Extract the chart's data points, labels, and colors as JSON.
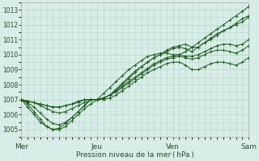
{
  "xlabel": "Pression niveau de la mer ( hPa )",
  "ylim": [
    1004.5,
    1013.5
  ],
  "yticks": [
    1005,
    1006,
    1007,
    1008,
    1009,
    1010,
    1011,
    1012,
    1013
  ],
  "xtick_labels": [
    "Mer",
    "Jeu",
    "Ven",
    "Sam"
  ],
  "bg_color": "#d8ede8",
  "grid_color": "#b8d4cc",
  "line_color": "#1a5c1a",
  "series": [
    [
      1007.0,
      1006.7,
      1006.2,
      1005.7,
      1005.2,
      1005.0,
      1005.0,
      1005.2,
      1005.6,
      1006.0,
      1006.4,
      1006.7,
      1007.0,
      1007.4,
      1007.8,
      1008.2,
      1008.6,
      1009.0,
      1009.3,
      1009.6,
      1009.9,
      1010.0,
      1010.1,
      1010.1,
      1010.0,
      1010.0,
      1010.2,
      1010.5,
      1010.8,
      1011.1,
      1011.4,
      1011.7,
      1012.0,
      1012.3,
      1012.6,
      1012.9,
      1013.2
    ],
    [
      1007.0,
      1006.5,
      1006.0,
      1005.5,
      1005.2,
      1005.0,
      1005.1,
      1005.4,
      1005.8,
      1006.2,
      1006.6,
      1007.0,
      1007.0,
      1007.1,
      1007.3,
      1007.6,
      1008.0,
      1008.4,
      1008.8,
      1009.2,
      1009.5,
      1009.8,
      1010.0,
      1010.2,
      1010.4,
      1010.5,
      1010.4,
      1010.2,
      1010.5,
      1010.8,
      1011.1,
      1011.4,
      1011.6,
      1011.8,
      1012.0,
      1012.2,
      1012.5
    ],
    [
      1007.0,
      1006.8,
      1006.5,
      1006.1,
      1005.7,
      1005.4,
      1005.3,
      1005.5,
      1005.8,
      1006.2,
      1006.6,
      1007.0,
      1007.0,
      1007.1,
      1007.3,
      1007.7,
      1008.1,
      1008.5,
      1008.9,
      1009.2,
      1009.5,
      1009.8,
      1010.0,
      1010.3,
      1010.5,
      1010.6,
      1010.7,
      1010.5,
      1010.5,
      1010.8,
      1011.0,
      1011.3,
      1011.6,
      1011.8,
      1012.1,
      1012.4,
      1012.6
    ],
    [
      1007.0,
      1006.9,
      1006.8,
      1006.7,
      1006.6,
      1006.5,
      1006.5,
      1006.6,
      1006.7,
      1006.9,
      1007.0,
      1007.0,
      1007.0,
      1007.1,
      1007.3,
      1007.6,
      1007.9,
      1008.2,
      1008.5,
      1008.8,
      1009.1,
      1009.4,
      1009.6,
      1009.8,
      1009.9,
      1010.0,
      1009.9,
      1009.9,
      1010.0,
      1010.2,
      1010.4,
      1010.6,
      1010.7,
      1010.7,
      1010.6,
      1010.7,
      1011.0
    ],
    [
      1007.0,
      1006.9,
      1006.8,
      1006.7,
      1006.6,
      1006.5,
      1006.5,
      1006.6,
      1006.7,
      1006.8,
      1007.0,
      1007.0,
      1007.0,
      1007.1,
      1007.3,
      1007.5,
      1007.8,
      1008.1,
      1008.4,
      1008.7,
      1009.0,
      1009.3,
      1009.5,
      1009.7,
      1009.8,
      1009.9,
      1009.8,
      1009.7,
      1009.8,
      1010.0,
      1010.2,
      1010.3,
      1010.3,
      1010.2,
      1010.1,
      1010.3,
      1010.6
    ],
    [
      1007.0,
      1006.9,
      1006.8,
      1006.6,
      1006.4,
      1006.2,
      1006.1,
      1006.2,
      1006.4,
      1006.6,
      1006.8,
      1007.0,
      1007.0,
      1007.0,
      1007.1,
      1007.3,
      1007.6,
      1007.9,
      1008.2,
      1008.5,
      1008.8,
      1009.0,
      1009.2,
      1009.4,
      1009.5,
      1009.5,
      1009.3,
      1009.0,
      1009.0,
      1009.2,
      1009.4,
      1009.5,
      1009.5,
      1009.4,
      1009.3,
      1009.5,
      1009.8
    ]
  ]
}
